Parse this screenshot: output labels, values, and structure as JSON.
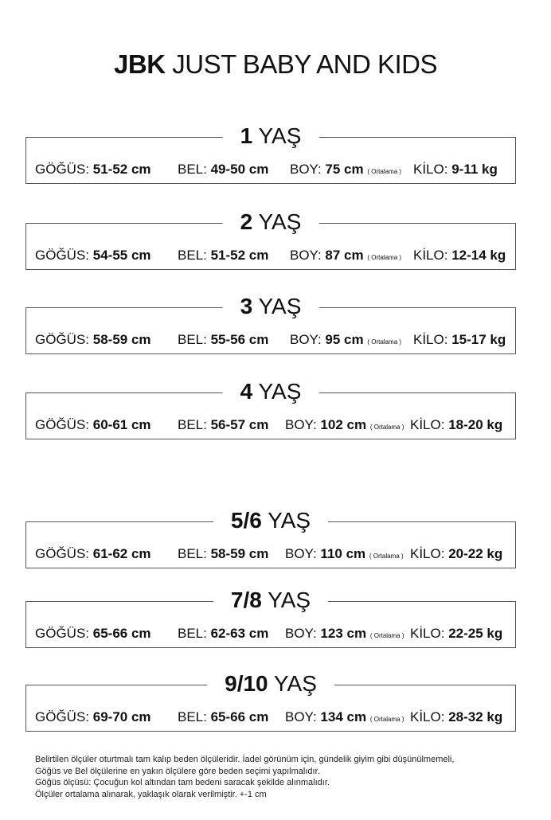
{
  "header": {
    "brand": "JBK",
    "title": "JUST BABY AND KIDS"
  },
  "labels": {
    "chest": "GÖĞÜS:",
    "waist": "BEL:",
    "height": "BOY:",
    "weight": "KİLO:",
    "average_note": "( Ortalama )",
    "age_unit": "YAŞ"
  },
  "sizes": [
    {
      "age": "1",
      "chest": "51-52 cm",
      "waist": "49-50 cm",
      "height": "75 cm",
      "weight": "9-11 kg"
    },
    {
      "age": "2",
      "chest": "54-55 cm",
      "waist": "51-52 cm",
      "height": "87 cm",
      "weight": "12-14 kg"
    },
    {
      "age": "3",
      "chest": "58-59 cm",
      "waist": "55-56 cm",
      "height": "95 cm",
      "weight": "15-17 kg"
    },
    {
      "age": "4",
      "chest": "60-61 cm",
      "waist": "56-57 cm",
      "height": "102 cm",
      "weight": "18-20 kg"
    },
    {
      "age": "5/6",
      "chest": "61-62 cm",
      "waist": "58-59 cm",
      "height": "110 cm",
      "weight": "20-22 kg"
    },
    {
      "age": "7/8",
      "chest": "65-66 cm",
      "waist": "62-63 cm",
      "height": "123 cm",
      "weight": "22-25 kg"
    },
    {
      "age": "9/10",
      "chest": "69-70 cm",
      "waist": "65-66 cm",
      "height": "134 cm",
      "weight": "28-32 kg"
    }
  ],
  "footer": [
    "Belirtilen ölçüler oturtmalı tam kalıp beden ölçüleridir. İadel görünüm için, gündelik giyim gibi düşünülmemeli,",
    "Göğüs ve Bel ölçülerine en yakın ölçülere göre beden seçimi yapılmalıdır.",
    "Göğüs ölçüsü: Çocuğun kol altından tam bedeni saracak şekilde alınmalıdır.",
    "Ölçüler ortalama alınarak, yaklaşık olarak verilmiştir. +-1 cm"
  ]
}
